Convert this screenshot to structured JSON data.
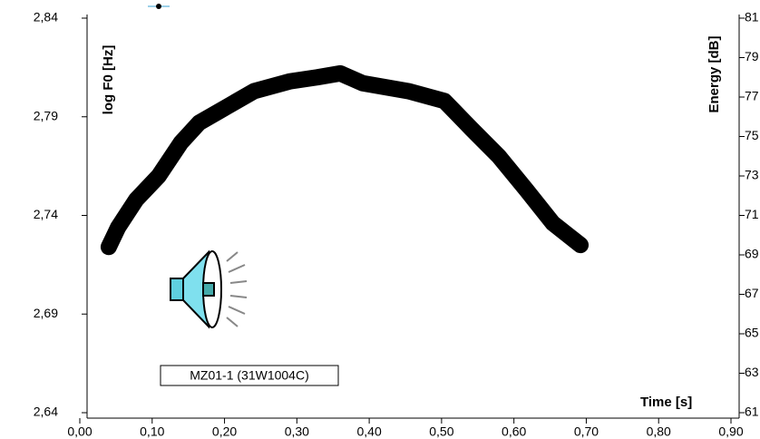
{
  "chart_data": {
    "type": "line",
    "y_label": "log F0 [Hz]",
    "y2_label": "Energy [dB]",
    "x_label": "Time [s]",
    "annotation": "MZ01-1 (31W1004C)",
    "xlim": [
      0,
      0.9
    ],
    "xticks": [
      {
        "value": 0,
        "label": "0,00"
      },
      {
        "value": 0.1,
        "label": "0,10"
      },
      {
        "value": 0.2,
        "label": "0,20"
      },
      {
        "value": 0.3,
        "label": "0,30"
      },
      {
        "value": 0.4,
        "label": "0,40"
      },
      {
        "value": 0.5,
        "label": "0,50"
      },
      {
        "value": 0.6,
        "label": "0,60"
      },
      {
        "value": 0.7,
        "label": "0,70"
      },
      {
        "value": 0.8,
        "label": "0,80"
      },
      {
        "value": 0.9,
        "label": "0,90"
      }
    ],
    "ylim": [
      2.64,
      2.84
    ],
    "yticks": [
      {
        "value": 2.64,
        "label": "2,64"
      },
      {
        "value": 2.69,
        "label": "2,69"
      },
      {
        "value": 2.74,
        "label": "2,74"
      },
      {
        "value": 2.79,
        "label": "2,79"
      },
      {
        "value": 2.84,
        "label": "2,84"
      }
    ],
    "y2lim": [
      61,
      81
    ],
    "y2ticks": [
      61,
      63,
      65,
      67,
      69,
      71,
      73,
      75,
      77,
      79,
      81
    ],
    "color": "#000000",
    "x": [
      0.04,
      0.053,
      0.078,
      0.109,
      0.14,
      0.165,
      0.203,
      0.241,
      0.291,
      0.328,
      0.36,
      0.391,
      0.454,
      0.504,
      0.541,
      0.579,
      0.617,
      0.654,
      0.692
    ],
    "values": [
      2.724,
      2.734,
      2.748,
      2.76,
      2.777,
      2.787,
      2.795,
      2.803,
      2.808,
      2.81,
      2.812,
      2.807,
      2.803,
      2.798,
      2.784,
      2.77,
      2.753,
      2.736,
      2.725
    ]
  }
}
